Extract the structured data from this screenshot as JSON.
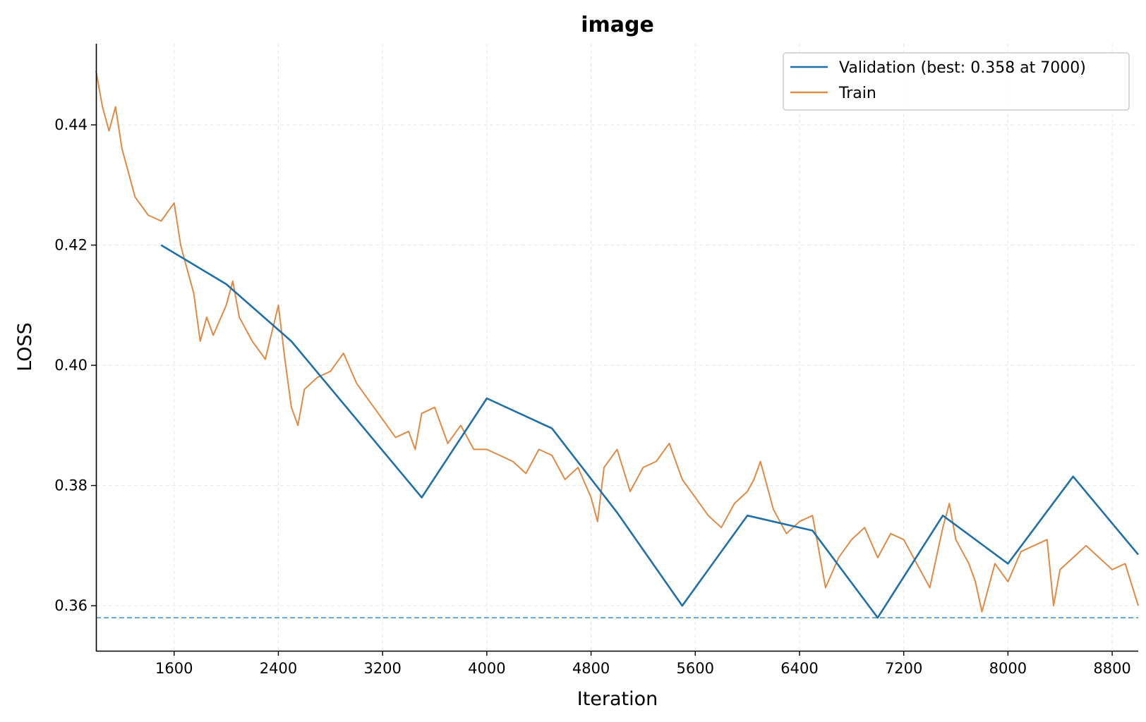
{
  "chart_data": {
    "type": "line",
    "title": "image",
    "xlabel": "Iteration",
    "ylabel": "LOSS",
    "xlim": [
      1000,
      9000
    ],
    "ylim": [
      0.3525,
      0.4535
    ],
    "x_ticks": [
      1600,
      2400,
      3200,
      4000,
      4800,
      5600,
      6400,
      7200,
      8000,
      8800
    ],
    "x_tick_labels": [
      "1600",
      "2400",
      "3200",
      "4000",
      "4800",
      "5600",
      "6400",
      "7200",
      "8000",
      "8800"
    ],
    "y_ticks": [
      0.36,
      0.38,
      0.4,
      0.42,
      0.44
    ],
    "y_tick_labels": [
      "0.36",
      "0.38",
      "0.40",
      "0.42",
      "0.44"
    ],
    "grid": true,
    "legend_position": "top-right",
    "series": [
      {
        "name": "Validation (best: 0.358 at 7000)",
        "color": "#1f6fa8",
        "x": [
          1500,
          2000,
          2500,
          3000,
          3500,
          4000,
          4500,
          5000,
          5500,
          6000,
          6500,
          7000,
          7500,
          8000,
          8500,
          9000
        ],
        "values": [
          0.42,
          0.4135,
          0.404,
          0.391,
          0.378,
          0.3945,
          0.3895,
          0.3755,
          0.36,
          0.375,
          0.3725,
          0.358,
          0.375,
          0.367,
          0.3815,
          0.3685
        ]
      },
      {
        "name": "Train",
        "color": "#e08a45",
        "x": [
          1000,
          1050,
          1100,
          1150,
          1200,
          1250,
          1300,
          1400,
          1500,
          1600,
          1650,
          1700,
          1750,
          1800,
          1850,
          1900,
          2000,
          2050,
          2100,
          2200,
          2300,
          2400,
          2450,
          2500,
          2550,
          2600,
          2700,
          2800,
          2900,
          3000,
          3100,
          3200,
          3300,
          3400,
          3450,
          3500,
          3600,
          3700,
          3800,
          3900,
          4000,
          4100,
          4200,
          4300,
          4400,
          4500,
          4600,
          4700,
          4800,
          4850,
          4900,
          5000,
          5100,
          5200,
          5300,
          5400,
          5500,
          5600,
          5700,
          5800,
          5900,
          6000,
          6050,
          6100,
          6200,
          6300,
          6400,
          6500,
          6550,
          6600,
          6700,
          6800,
          6900,
          7000,
          7100,
          7200,
          7300,
          7400,
          7500,
          7550,
          7600,
          7700,
          7750,
          7800,
          7900,
          8000,
          8100,
          8200,
          8300,
          8350,
          8400,
          8500,
          8600,
          8700,
          8800,
          8900,
          9000
        ],
        "values": [
          0.449,
          0.443,
          0.439,
          0.443,
          0.436,
          0.432,
          0.428,
          0.425,
          0.424,
          0.427,
          0.42,
          0.416,
          0.412,
          0.404,
          0.408,
          0.405,
          0.41,
          0.414,
          0.408,
          0.404,
          0.401,
          0.41,
          0.401,
          0.393,
          0.39,
          0.396,
          0.398,
          0.399,
          0.402,
          0.397,
          0.394,
          0.391,
          0.388,
          0.389,
          0.386,
          0.392,
          0.393,
          0.387,
          0.39,
          0.386,
          0.386,
          0.385,
          0.384,
          0.382,
          0.386,
          0.385,
          0.381,
          0.383,
          0.378,
          0.374,
          0.383,
          0.386,
          0.379,
          0.383,
          0.384,
          0.387,
          0.381,
          0.378,
          0.375,
          0.373,
          0.377,
          0.379,
          0.381,
          0.384,
          0.376,
          0.372,
          0.374,
          0.375,
          0.369,
          0.363,
          0.368,
          0.371,
          0.373,
          0.368,
          0.372,
          0.371,
          0.367,
          0.363,
          0.373,
          0.377,
          0.371,
          0.367,
          0.364,
          0.359,
          0.367,
          0.364,
          0.369,
          0.37,
          0.371,
          0.36,
          0.366,
          0.368,
          0.37,
          0.368,
          0.366,
          0.367,
          0.36
        ]
      }
    ],
    "reference_line": {
      "y": 0.358,
      "color": "#3a8fd0",
      "style": "dashed"
    }
  }
}
